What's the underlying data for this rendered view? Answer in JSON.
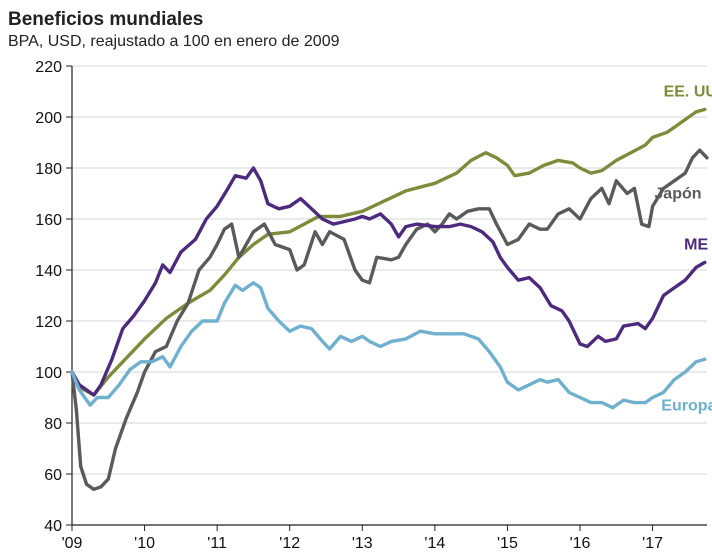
{
  "chart_data": {
    "type": "line",
    "title": "Beneficios mundiales",
    "subtitle": "BPA, USD, reajustado a 100 en enero de 2009",
    "xlabel": "",
    "ylabel": "",
    "xlim": [
      2009.0,
      2017.75
    ],
    "ylim": [
      40,
      220
    ],
    "yticks": [
      "40",
      "60",
      "80",
      "100",
      "120",
      "140",
      "160",
      "180",
      "200",
      "220"
    ],
    "xticks": [
      {
        "label": "'09",
        "x": 2009
      },
      {
        "label": "'10",
        "x": 2010
      },
      {
        "label": "'11",
        "x": 2011
      },
      {
        "label": "'12",
        "x": 2012
      },
      {
        "label": "'13",
        "x": 2013
      },
      {
        "label": "'14",
        "x": 2014
      },
      {
        "label": "'15",
        "x": 2015
      },
      {
        "label": "'16",
        "x": 2016
      },
      {
        "label": "'17",
        "x": 2017
      }
    ],
    "grid": "horizontal",
    "series": [
      {
        "name": "EE. UU.",
        "color": "#7d8c3a",
        "label_pos": [
          2017.55,
          208
        ],
        "points": [
          [
            2009.0,
            100
          ],
          [
            2009.1,
            94
          ],
          [
            2009.3,
            91
          ],
          [
            2009.5,
            98
          ],
          [
            2009.7,
            104
          ],
          [
            2010.0,
            113
          ],
          [
            2010.3,
            121
          ],
          [
            2010.6,
            127
          ],
          [
            2010.9,
            132
          ],
          [
            2011.1,
            138
          ],
          [
            2011.3,
            145
          ],
          [
            2011.5,
            150
          ],
          [
            2011.7,
            154
          ],
          [
            2012.0,
            155
          ],
          [
            2012.2,
            158
          ],
          [
            2012.4,
            161
          ],
          [
            2012.7,
            161
          ],
          [
            2013.0,
            163
          ],
          [
            2013.3,
            167
          ],
          [
            2013.6,
            171
          ],
          [
            2014.0,
            174
          ],
          [
            2014.3,
            178
          ],
          [
            2014.5,
            183
          ],
          [
            2014.7,
            186
          ],
          [
            2014.85,
            184
          ],
          [
            2015.0,
            181
          ],
          [
            2015.1,
            177
          ],
          [
            2015.3,
            178
          ],
          [
            2015.5,
            181
          ],
          [
            2015.7,
            183
          ],
          [
            2015.9,
            182
          ],
          [
            2016.0,
            180
          ],
          [
            2016.15,
            178
          ],
          [
            2016.3,
            179
          ],
          [
            2016.5,
            183
          ],
          [
            2016.7,
            186
          ],
          [
            2016.9,
            189
          ],
          [
            2017.0,
            192
          ],
          [
            2017.2,
            194
          ],
          [
            2017.4,
            198
          ],
          [
            2017.6,
            202
          ],
          [
            2017.72,
            203
          ]
        ]
      },
      {
        "name": "Japón",
        "color": "#5a5a5a",
        "label_pos": [
          2017.35,
          168
        ],
        "points": [
          [
            2009.0,
            100
          ],
          [
            2009.06,
            85
          ],
          [
            2009.12,
            63
          ],
          [
            2009.2,
            56
          ],
          [
            2009.3,
            54
          ],
          [
            2009.4,
            55
          ],
          [
            2009.5,
            58
          ],
          [
            2009.6,
            70
          ],
          [
            2009.75,
            82
          ],
          [
            2009.9,
            92
          ],
          [
            2010.0,
            100
          ],
          [
            2010.15,
            108
          ],
          [
            2010.3,
            110
          ],
          [
            2010.45,
            120
          ],
          [
            2010.6,
            127
          ],
          [
            2010.75,
            140
          ],
          [
            2010.9,
            145
          ],
          [
            2011.0,
            150
          ],
          [
            2011.1,
            156
          ],
          [
            2011.2,
            158
          ],
          [
            2011.3,
            145
          ],
          [
            2011.4,
            150
          ],
          [
            2011.5,
            155
          ],
          [
            2011.65,
            158
          ],
          [
            2011.8,
            150
          ],
          [
            2012.0,
            148
          ],
          [
            2012.1,
            140
          ],
          [
            2012.2,
            142
          ],
          [
            2012.35,
            155
          ],
          [
            2012.45,
            150
          ],
          [
            2012.55,
            155
          ],
          [
            2012.75,
            152
          ],
          [
            2012.9,
            140
          ],
          [
            2013.0,
            136
          ],
          [
            2013.1,
            135
          ],
          [
            2013.2,
            145
          ],
          [
            2013.4,
            144
          ],
          [
            2013.5,
            145
          ],
          [
            2013.6,
            150
          ],
          [
            2013.75,
            156
          ],
          [
            2013.9,
            158
          ],
          [
            2014.0,
            155
          ],
          [
            2014.1,
            158
          ],
          [
            2014.2,
            162
          ],
          [
            2014.3,
            160
          ],
          [
            2014.45,
            163
          ],
          [
            2014.6,
            164
          ],
          [
            2014.75,
            164
          ],
          [
            2014.85,
            158
          ],
          [
            2015.0,
            150
          ],
          [
            2015.15,
            152
          ],
          [
            2015.3,
            158
          ],
          [
            2015.45,
            156
          ],
          [
            2015.55,
            156
          ],
          [
            2015.7,
            162
          ],
          [
            2015.85,
            164
          ],
          [
            2016.0,
            160
          ],
          [
            2016.15,
            168
          ],
          [
            2016.3,
            172
          ],
          [
            2016.4,
            166
          ],
          [
            2016.5,
            175
          ],
          [
            2016.65,
            170
          ],
          [
            2016.75,
            172
          ],
          [
            2016.85,
            158
          ],
          [
            2016.95,
            157
          ],
          [
            2017.0,
            165
          ],
          [
            2017.15,
            172
          ],
          [
            2017.3,
            175
          ],
          [
            2017.45,
            178
          ],
          [
            2017.55,
            184
          ],
          [
            2017.65,
            187
          ],
          [
            2017.75,
            184
          ]
        ]
      },
      {
        "name": "ME",
        "color": "#4e2a7e",
        "label_pos": [
          2017.6,
          148
        ],
        "points": [
          [
            2009.0,
            100
          ],
          [
            2009.1,
            95
          ],
          [
            2009.3,
            91
          ],
          [
            2009.4,
            95
          ],
          [
            2009.55,
            105
          ],
          [
            2009.7,
            117
          ],
          [
            2009.85,
            122
          ],
          [
            2010.0,
            128
          ],
          [
            2010.15,
            135
          ],
          [
            2010.25,
            142
          ],
          [
            2010.35,
            139
          ],
          [
            2010.5,
            147
          ],
          [
            2010.7,
            152
          ],
          [
            2010.85,
            160
          ],
          [
            2011.0,
            165
          ],
          [
            2011.15,
            172
          ],
          [
            2011.25,
            177
          ],
          [
            2011.4,
            176
          ],
          [
            2011.5,
            180
          ],
          [
            2011.6,
            175
          ],
          [
            2011.7,
            166
          ],
          [
            2011.85,
            164
          ],
          [
            2012.0,
            165
          ],
          [
            2012.15,
            168
          ],
          [
            2012.3,
            164
          ],
          [
            2012.45,
            160
          ],
          [
            2012.6,
            158
          ],
          [
            2012.75,
            159
          ],
          [
            2012.9,
            160
          ],
          [
            2013.0,
            161
          ],
          [
            2013.1,
            160
          ],
          [
            2013.25,
            162
          ],
          [
            2013.4,
            158
          ],
          [
            2013.5,
            153
          ],
          [
            2013.6,
            157
          ],
          [
            2013.75,
            158
          ],
          [
            2014.0,
            157
          ],
          [
            2014.2,
            157
          ],
          [
            2014.35,
            158
          ],
          [
            2014.5,
            157
          ],
          [
            2014.65,
            155
          ],
          [
            2014.8,
            151
          ],
          [
            2014.9,
            145
          ],
          [
            2015.0,
            141
          ],
          [
            2015.15,
            136
          ],
          [
            2015.3,
            137
          ],
          [
            2015.45,
            133
          ],
          [
            2015.6,
            126
          ],
          [
            2015.75,
            124
          ],
          [
            2015.85,
            120
          ],
          [
            2016.0,
            111
          ],
          [
            2016.1,
            110
          ],
          [
            2016.25,
            114
          ],
          [
            2016.35,
            112
          ],
          [
            2016.5,
            113
          ],
          [
            2016.6,
            118
          ],
          [
            2016.8,
            119
          ],
          [
            2016.9,
            117
          ],
          [
            2017.0,
            121
          ],
          [
            2017.15,
            130
          ],
          [
            2017.3,
            133
          ],
          [
            2017.45,
            136
          ],
          [
            2017.6,
            141
          ],
          [
            2017.72,
            143
          ]
        ]
      },
      {
        "name": "Europa",
        "color": "#6fb0cf",
        "label_pos": [
          2017.5,
          85
        ],
        "points": [
          [
            2009.0,
            100
          ],
          [
            2009.1,
            93
          ],
          [
            2009.25,
            87
          ],
          [
            2009.35,
            90
          ],
          [
            2009.5,
            90
          ],
          [
            2009.65,
            95
          ],
          [
            2009.8,
            101
          ],
          [
            2009.95,
            104
          ],
          [
            2010.1,
            104
          ],
          [
            2010.25,
            106
          ],
          [
            2010.35,
            102
          ],
          [
            2010.5,
            110
          ],
          [
            2010.65,
            116
          ],
          [
            2010.8,
            120
          ],
          [
            2011.0,
            120
          ],
          [
            2011.1,
            127
          ],
          [
            2011.25,
            134
          ],
          [
            2011.35,
            132
          ],
          [
            2011.5,
            135
          ],
          [
            2011.6,
            133
          ],
          [
            2011.7,
            125
          ],
          [
            2011.85,
            120
          ],
          [
            2012.0,
            116
          ],
          [
            2012.15,
            118
          ],
          [
            2012.3,
            117
          ],
          [
            2012.45,
            112
          ],
          [
            2012.55,
            109
          ],
          [
            2012.7,
            114
          ],
          [
            2012.85,
            112
          ],
          [
            2013.0,
            114
          ],
          [
            2013.1,
            112
          ],
          [
            2013.25,
            110
          ],
          [
            2013.4,
            112
          ],
          [
            2013.6,
            113
          ],
          [
            2013.8,
            116
          ],
          [
            2014.0,
            115
          ],
          [
            2014.2,
            115
          ],
          [
            2014.4,
            115
          ],
          [
            2014.6,
            113
          ],
          [
            2014.75,
            108
          ],
          [
            2014.9,
            102
          ],
          [
            2015.0,
            96
          ],
          [
            2015.15,
            93
          ],
          [
            2015.3,
            95
          ],
          [
            2015.45,
            97
          ],
          [
            2015.55,
            96
          ],
          [
            2015.7,
            97
          ],
          [
            2015.85,
            92
          ],
          [
            2016.0,
            90
          ],
          [
            2016.15,
            88
          ],
          [
            2016.3,
            88
          ],
          [
            2016.45,
            86
          ],
          [
            2016.6,
            89
          ],
          [
            2016.75,
            88
          ],
          [
            2016.9,
            88
          ],
          [
            2017.0,
            90
          ],
          [
            2017.15,
            92
          ],
          [
            2017.3,
            97
          ],
          [
            2017.45,
            100
          ],
          [
            2017.6,
            104
          ],
          [
            2017.72,
            105
          ]
        ]
      }
    ]
  }
}
